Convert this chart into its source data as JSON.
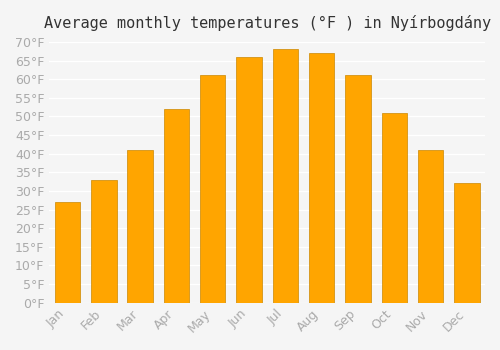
{
  "title": "Average monthly temperatures (°F ) in Nyírbogdány",
  "months": [
    "Jan",
    "Feb",
    "Mar",
    "Apr",
    "May",
    "Jun",
    "Jul",
    "Aug",
    "Sep",
    "Oct",
    "Nov",
    "Dec"
  ],
  "values": [
    27,
    33,
    41,
    52,
    61,
    66,
    68,
    67,
    61,
    51,
    41,
    32
  ],
  "bar_color": "#FFA500",
  "bar_edge_color": "#CC8800",
  "background_color": "#f5f5f5",
  "grid_color": "#ffffff",
  "ylim": [
    0,
    70
  ],
  "yticks": [
    0,
    5,
    10,
    15,
    20,
    25,
    30,
    35,
    40,
    45,
    50,
    55,
    60,
    65,
    70
  ],
  "title_fontsize": 11,
  "tick_fontsize": 9,
  "tick_color": "#aaaaaa"
}
